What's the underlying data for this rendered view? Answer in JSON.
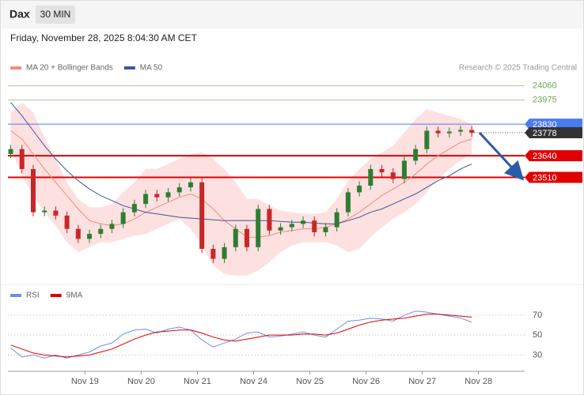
{
  "header": {
    "symbol": "Dax",
    "interval": "30 MIN",
    "timestamp": "Friday, November 28, 2025 8:04:30 AM CET",
    "copyright": "Research © 2025 Trading Central"
  },
  "chart_data": [
    {
      "type": "candlestick",
      "x": [
        -0.32,
        -0.12,
        0.08,
        0.28,
        0.48,
        0.68,
        0.88,
        1.08,
        1.28,
        1.48,
        1.68,
        1.88,
        2.08,
        2.28,
        2.48,
        2.68,
        2.88,
        3.08,
        3.28,
        3.48,
        3.68,
        3.88,
        4.08,
        4.28,
        4.48,
        4.68,
        4.88,
        5.08,
        5.28,
        5.48,
        5.68,
        5.88,
        6.08,
        6.28,
        6.48,
        6.68,
        6.88,
        7.08,
        7.28,
        7.48,
        7.68,
        7.88
      ],
      "open": [
        23650,
        23680,
        23560,
        23300,
        23310,
        23280,
        23200,
        23140,
        23170,
        23200,
        23230,
        23300,
        23350,
        23410,
        23390,
        23420,
        23450,
        23480,
        23080,
        23020,
        23090,
        23200,
        23090,
        23320,
        23190,
        23210,
        23230,
        23250,
        23180,
        23210,
        23300,
        23420,
        23460,
        23560,
        23540,
        23500,
        23610,
        23680,
        23790,
        23775,
        23785,
        23795
      ],
      "high": [
        23705,
        23705,
        23585,
        23335,
        23335,
        23305,
        23225,
        23195,
        23225,
        23255,
        23325,
        23375,
        23435,
        23435,
        23445,
        23475,
        23505,
        23505,
        23105,
        23115,
        23225,
        23225,
        23345,
        23345,
        23235,
        23255,
        23275,
        23275,
        23235,
        23325,
        23445,
        23485,
        23585,
        23585,
        23565,
        23635,
        23705,
        23815,
        23815,
        23810,
        23820,
        23820
      ],
      "low": [
        23625,
        23535,
        23275,
        23275,
        23255,
        23175,
        23115,
        23115,
        23145,
        23175,
        23205,
        23275,
        23325,
        23365,
        23365,
        23395,
        23425,
        23055,
        22995,
        22995,
        23065,
        23065,
        23065,
        23165,
        23165,
        23185,
        23205,
        23155,
        23155,
        23185,
        23275,
        23395,
        23435,
        23515,
        23475,
        23475,
        23585,
        23655,
        23750,
        23750,
        23760,
        23753
      ],
      "close": [
        23680,
        23560,
        23300,
        23310,
        23280,
        23200,
        23140,
        23170,
        23200,
        23230,
        23300,
        23350,
        23410,
        23390,
        23420,
        23450,
        23480,
        23080,
        23020,
        23090,
        23200,
        23090,
        23320,
        23190,
        23210,
        23230,
        23250,
        23180,
        23210,
        23300,
        23420,
        23460,
        23560,
        23540,
        23500,
        23610,
        23680,
        23790,
        23775,
        23785,
        23795,
        23778
      ],
      "up_color": "#2e7d32",
      "down_color": "#c62828",
      "series": [
        {
          "name": "MA 20 + Bollinger Bands",
          "color": "#f28b82",
          "band_color": "#fde0e0",
          "values": [
            23790,
            23740,
            23650,
            23560,
            23480,
            23400,
            23320,
            23250,
            23230,
            23220,
            23230,
            23260,
            23300,
            23330,
            23360,
            23390,
            23410,
            23380,
            23320,
            23250,
            23200,
            23150,
            23150,
            23160,
            23180,
            23190,
            23200,
            23200,
            23210,
            23230,
            23260,
            23300,
            23350,
            23400,
            23440,
            23480,
            23530,
            23590,
            23640,
            23680,
            23720,
            23740
          ],
          "band_upper": [
            23900,
            23960,
            23900,
            23750,
            23620,
            23480,
            23380,
            23330,
            23330,
            23350,
            23420,
            23480,
            23560,
            23560,
            23590,
            23620,
            23650,
            23660,
            23620,
            23560,
            23480,
            23380,
            23380,
            23340,
            23310,
            23300,
            23290,
            23290,
            23300,
            23380,
            23490,
            23560,
            23620,
            23660,
            23700,
            23780,
            23860,
            23920,
            23900,
            23880,
            23860,
            23830
          ],
          "band_lower": [
            23680,
            23520,
            23400,
            23300,
            23220,
            23120,
            23060,
            23090,
            23120,
            23120,
            23140,
            23160,
            23170,
            23200,
            23230,
            23260,
            23200,
            23100,
            22980,
            22930,
            22920,
            22920,
            22950,
            23000,
            23060,
            23100,
            23120,
            23120,
            23120,
            23100,
            23060,
            23080,
            23150,
            23210,
            23260,
            23300,
            23350,
            23420,
            23500,
            23560,
            23610,
            23650
          ]
        },
        {
          "name": "MA 50",
          "color": "#3b5998",
          "values": [
            23960,
            23880,
            23790,
            23700,
            23620,
            23550,
            23490,
            23440,
            23400,
            23370,
            23340,
            23320,
            23300,
            23290,
            23280,
            23270,
            23265,
            23260,
            23255,
            23250,
            23250,
            23250,
            23250,
            23250,
            23245,
            23240,
            23240,
            23235,
            23230,
            23230,
            23250,
            23270,
            23300,
            23320,
            23350,
            23380,
            23410,
            23450,
            23490,
            23520,
            23560,
            23590
          ]
        }
      ],
      "levels": [
        {
          "value": 24060,
          "color": "#6aa84f",
          "box": false
        },
        {
          "value": 23975,
          "color": "#6aa84f",
          "box": false
        },
        {
          "value": 23830,
          "color": "#4a7cf0",
          "box": true
        },
        {
          "value": 23640,
          "color": "#e00000",
          "box": true
        },
        {
          "value": 23510,
          "color": "#e00000",
          "box": true
        }
      ],
      "last_price": 23778,
      "last_color": "#333333",
      "xlim": [
        -0.37,
        8.82
      ],
      "ylim": [
        22890,
        24125
      ]
    },
    {
      "type": "line",
      "x": [
        -0.32,
        -0.12,
        0.08,
        0.28,
        0.48,
        0.68,
        0.88,
        1.08,
        1.28,
        1.48,
        1.68,
        1.88,
        2.08,
        2.28,
        2.48,
        2.68,
        2.88,
        3.08,
        3.28,
        3.48,
        3.68,
        3.88,
        4.08,
        4.28,
        4.48,
        4.68,
        4.88,
        5.08,
        5.28,
        5.48,
        5.68,
        5.88,
        6.08,
        6.28,
        6.48,
        6.68,
        6.88,
        7.08,
        7.28,
        7.48,
        7.68,
        7.88
      ],
      "series": [
        {
          "name": "RSI",
          "color": "#6d8fe0",
          "values": [
            37,
            28,
            30,
            27,
            30,
            27,
            30,
            33,
            39,
            42,
            51,
            55,
            56,
            52,
            56,
            58,
            55,
            45,
            38,
            42,
            46,
            52,
            53,
            48,
            49,
            51,
            53,
            50,
            48,
            56,
            64,
            65,
            67,
            66,
            64,
            70,
            74,
            73,
            71,
            69,
            67,
            63
          ]
        },
        {
          "name": "9MA",
          "color": "#e00000",
          "values": [
            40,
            36,
            32,
            30,
            29,
            28,
            29,
            30,
            33,
            36,
            41,
            46,
            50,
            53,
            54,
            55,
            55,
            52,
            48,
            45,
            44,
            46,
            48,
            50,
            50,
            50,
            51,
            51,
            50,
            52,
            56,
            60,
            63,
            65,
            66,
            67,
            69,
            71,
            71,
            70,
            69,
            68
          ]
        }
      ],
      "ylim": [
        20,
        81
      ],
      "yticks": [
        30,
        50,
        70
      ],
      "xlim": [
        -0.37,
        8.82
      ],
      "xticks": [
        {
          "value": 1,
          "label": "Nov 19"
        },
        {
          "value": 2,
          "label": "Nov 20"
        },
        {
          "value": 3,
          "label": "Nov 21"
        },
        {
          "value": 4,
          "label": "Nov 24"
        },
        {
          "value": 5,
          "label": "Nov 25"
        },
        {
          "value": 6,
          "label": "Nov 26"
        },
        {
          "value": 7,
          "label": "Nov 27"
        },
        {
          "value": 8,
          "label": "Nov 28"
        }
      ]
    }
  ]
}
